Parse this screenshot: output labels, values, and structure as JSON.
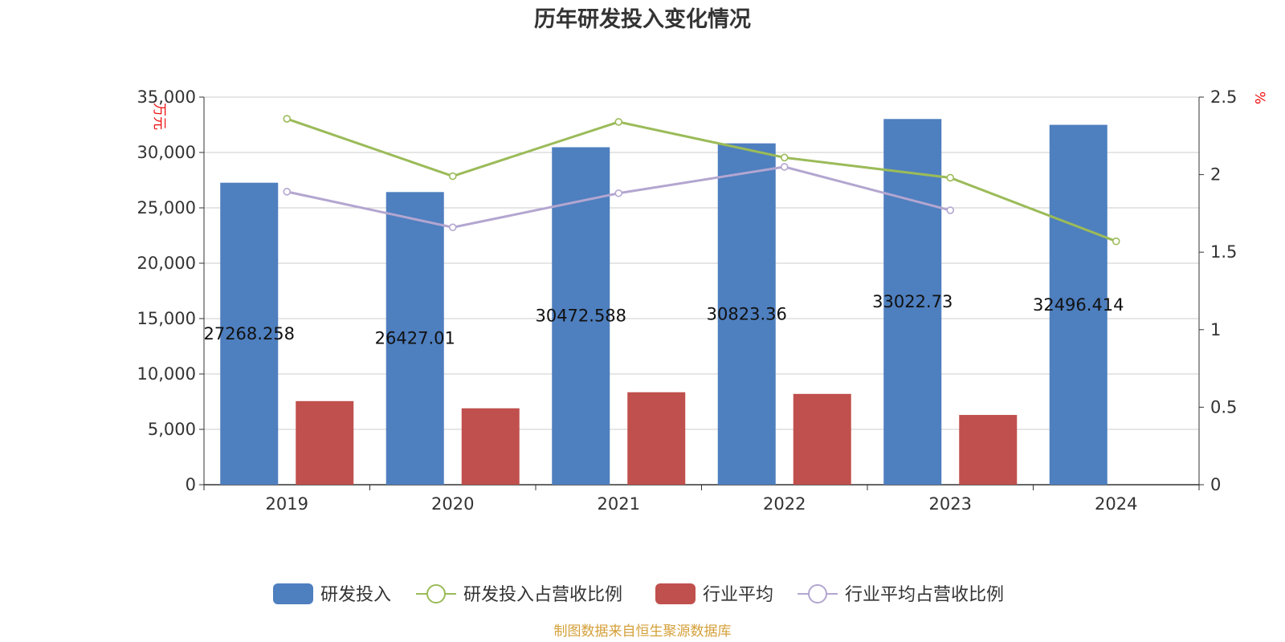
{
  "title": "历年研发投入变化情况",
  "source": "制图数据来自恒生聚源数据库",
  "colors": {
    "rd": "#4e7fbf",
    "rd_ratio": "#9bbb59",
    "ind": "#c0504d",
    "ind_ratio": "#b3a6d0"
  },
  "chart_data": {
    "type": "bar",
    "title": "历年研发投入变化情况",
    "categories": [
      "2019",
      "2020",
      "2021",
      "2022",
      "2023",
      "2024"
    ],
    "y_left": {
      "unit": "万元",
      "ylim": [
        0,
        35000
      ],
      "ticks": [
        "0",
        "5,000",
        "10,000",
        "15,000",
        "20,000",
        "25,000",
        "30,000",
        "35,000"
      ]
    },
    "y_right": {
      "unit": "%",
      "ylim": [
        0,
        2.5
      ],
      "ticks": [
        "0",
        "0.5",
        "1",
        "1.5",
        "2",
        "2.5"
      ]
    },
    "grid": true,
    "legend_position": "bottom",
    "series": [
      {
        "name": "研发投入",
        "type": "bar",
        "axis": "left",
        "values": [
          27268.258,
          26427.01,
          30472.588,
          30823.36,
          33022.73,
          32496.414
        ],
        "labels": [
          "27268.258",
          "26427.01",
          "30472.588",
          "30823.36",
          "33022.73",
          "32496.414"
        ]
      },
      {
        "name": "研发投入占营收比例",
        "type": "line",
        "axis": "right",
        "values": [
          2.36,
          1.99,
          2.34,
          2.11,
          1.98,
          1.57
        ]
      },
      {
        "name": "行业平均",
        "type": "bar",
        "axis": "left",
        "values": [
          7550,
          6900,
          8350,
          8200,
          6300,
          null
        ]
      },
      {
        "name": "行业平均占营收比例",
        "type": "line",
        "axis": "right",
        "values": [
          1.89,
          1.66,
          1.88,
          2.05,
          1.77,
          null
        ]
      }
    ]
  }
}
